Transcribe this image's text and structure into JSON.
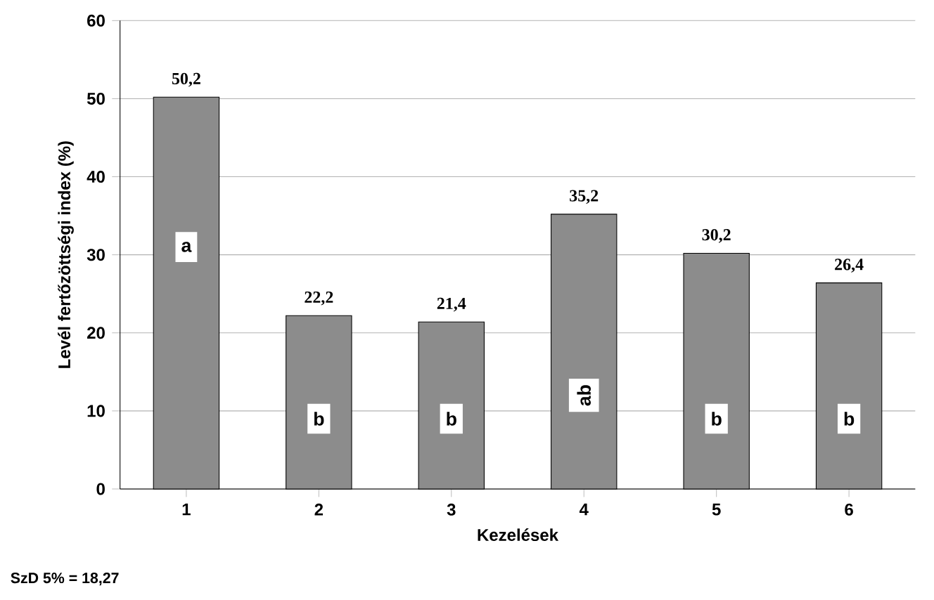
{
  "chart_data": {
    "type": "bar",
    "categories": [
      "1",
      "2",
      "3",
      "4",
      "5",
      "6"
    ],
    "values": [
      50.2,
      22.2,
      21.4,
      35.2,
      30.2,
      26.4
    ],
    "value_labels": [
      "50,2",
      "22,2",
      "21,4",
      "35,2",
      "30,2",
      "26,4"
    ],
    "color": "#8c8c8c",
    "xlabel": "Kezelések",
    "ylabel": "Levél fertőzöttségi index (%)",
    "ylim": [
      0,
      60
    ],
    "yticks": [
      0,
      10,
      20,
      30,
      40,
      50,
      60
    ],
    "grid": "y",
    "annotations": [
      {
        "text": "a",
        "x": "1",
        "y": 31
      },
      {
        "text": "b",
        "x": "2",
        "y": 9
      },
      {
        "text": "b",
        "x": "3",
        "y": 9
      },
      {
        "text": "ab",
        "x": "4",
        "y": 12
      },
      {
        "text": "b",
        "x": "5",
        "y": 9
      },
      {
        "text": "b",
        "x": "6",
        "y": 9
      },
      "SzD 5% = 18,27"
    ]
  }
}
